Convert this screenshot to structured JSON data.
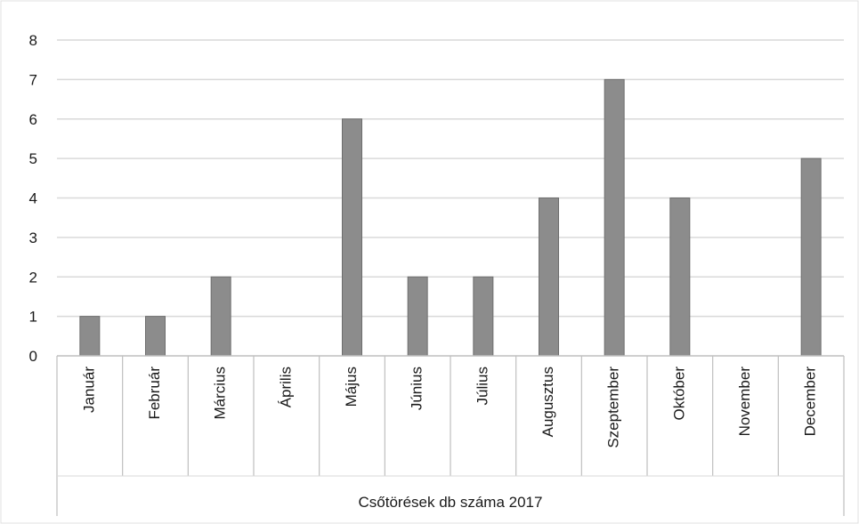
{
  "chart_data": {
    "type": "bar",
    "categories": [
      "Január",
      "Február",
      "Március",
      "Április",
      "Május",
      "Június",
      "Július",
      "Augusztus",
      "Szeptember",
      "Október",
      "November",
      "December"
    ],
    "values": [
      1,
      1,
      2,
      0,
      6,
      2,
      2,
      4,
      7,
      4,
      0,
      5
    ],
    "xlabel": "Csőtörések db száma 2017",
    "ylim": [
      0,
      8
    ],
    "yticks": [
      0,
      1,
      2,
      3,
      4,
      5,
      6,
      7,
      8
    ],
    "grid": true,
    "legend": "none",
    "colors": {
      "bar": "#8c8c8c",
      "bar_edge": "#6e6e6e",
      "grid": "#d9d9d9",
      "axis": "#bfbfbf"
    }
  }
}
